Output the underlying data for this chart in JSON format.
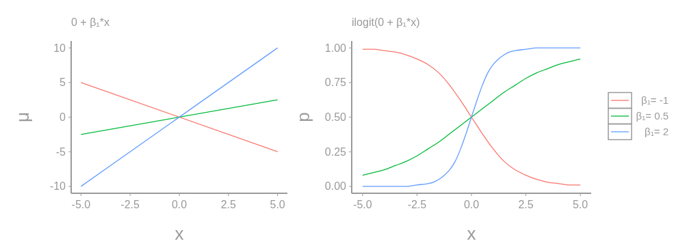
{
  "chart_data": [
    {
      "type": "line",
      "title": "0 + β₁*x",
      "xlabel": "x",
      "ylabel": "μ",
      "xlim": [
        -5.5,
        5.5
      ],
      "ylim": [
        -11,
        11
      ],
      "xticks": [
        {
          "value": -5,
          "label": "-5.0"
        },
        {
          "value": -2.5,
          "label": "-2.5"
        },
        {
          "value": 0,
          "label": "0.0"
        },
        {
          "value": 2.5,
          "label": "2.5"
        },
        {
          "value": 5,
          "label": "5.0"
        }
      ],
      "yticks": [
        -10,
        -5,
        0,
        5,
        10
      ],
      "grid": false,
      "legend": false,
      "series": [
        {
          "color": "#f8766d",
          "x": [
            -5,
            5
          ],
          "values": [
            5,
            -5
          ]
        },
        {
          "color": "#00ba38",
          "x": [
            -5,
            5
          ],
          "values": [
            -2.5,
            2.5
          ]
        },
        {
          "color": "#619cff",
          "x": [
            -5,
            5
          ],
          "values": [
            -10,
            10
          ]
        }
      ]
    },
    {
      "type": "line",
      "title": "ilogit(0 + β₁*x)",
      "xlabel": "x",
      "ylabel": "p",
      "xlim": [
        -5.5,
        5.5
      ],
      "ylim": [
        -0.05,
        1.05
      ],
      "xticks": [
        {
          "value": -5,
          "label": "-5.0"
        },
        {
          "value": -2.5,
          "label": "-2.5"
        },
        {
          "value": 0,
          "label": "0.0"
        },
        {
          "value": 2.5,
          "label": "2.5"
        },
        {
          "value": 5,
          "label": "5.0"
        }
      ],
      "yticks": [
        {
          "value": 0,
          "label": "0.00"
        },
        {
          "value": 0.25,
          "label": "0.25"
        },
        {
          "value": 0.5,
          "label": "0.50"
        },
        {
          "value": 0.75,
          "label": "0.75"
        },
        {
          "value": 1,
          "label": "1.00"
        }
      ],
      "grid": false,
      "legend": "right",
      "series": [
        {
          "name": "β₁= -1",
          "color": "#f8766d",
          "x": [
            -5,
            -4.5,
            -4,
            -3.5,
            -3,
            -2.5,
            -2,
            -1.5,
            -1,
            -0.5,
            0,
            0.5,
            1,
            1.5,
            2,
            2.5,
            3,
            3.5,
            4,
            4.5,
            5
          ],
          "values": [
            0.99,
            0.99,
            0.98,
            0.97,
            0.95,
            0.92,
            0.88,
            0.82,
            0.73,
            0.62,
            0.5,
            0.38,
            0.27,
            0.18,
            0.12,
            0.08,
            0.05,
            0.03,
            0.02,
            0.01,
            0.01
          ]
        },
        {
          "name": "β₁= 0.5",
          "color": "#00ba38",
          "x": [
            -5,
            -4.5,
            -4,
            -3.5,
            -3,
            -2.5,
            -2,
            -1.5,
            -1,
            -0.5,
            0,
            0.5,
            1,
            1.5,
            2,
            2.5,
            3,
            3.5,
            4,
            4.5,
            5
          ],
          "values": [
            0.08,
            0.1,
            0.12,
            0.15,
            0.18,
            0.22,
            0.27,
            0.32,
            0.38,
            0.44,
            0.5,
            0.56,
            0.62,
            0.68,
            0.73,
            0.78,
            0.82,
            0.85,
            0.88,
            0.9,
            0.92
          ]
        },
        {
          "name": "β₁= 2",
          "color": "#619cff",
          "x": [
            -5,
            -3,
            -2.5,
            -2,
            -1.75,
            -1.5,
            -1.25,
            -1,
            -0.75,
            -0.5,
            -0.25,
            0,
            0.25,
            0.5,
            0.75,
            1,
            1.25,
            1.5,
            1.75,
            2,
            2.5,
            3,
            5
          ],
          "values": [
            0,
            0,
            0.01,
            0.02,
            0.03,
            0.05,
            0.08,
            0.12,
            0.18,
            0.27,
            0.38,
            0.5,
            0.62,
            0.73,
            0.82,
            0.88,
            0.92,
            0.95,
            0.97,
            0.98,
            0.99,
            1,
            1
          ]
        }
      ]
    }
  ]
}
